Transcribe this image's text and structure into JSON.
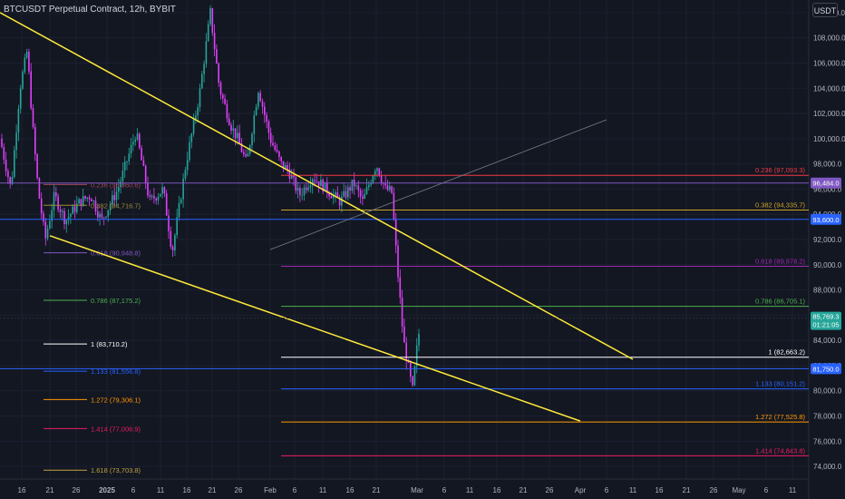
{
  "header": {
    "title": "BTCUSDT Perpetual Contract, 12h, BYBIT",
    "currency_button": "USDT"
  },
  "chart_data": {
    "type": "candlestick",
    "x_ticks": [
      "16",
      "21",
      "26",
      "2025",
      "6",
      "11",
      "16",
      "21",
      "26",
      "Feb",
      "6",
      "11",
      "16",
      "21",
      "Mar",
      "6",
      "11",
      "16",
      "21",
      "26",
      "Apr",
      "6",
      "11",
      "16",
      "21",
      "26",
      "May",
      "6",
      "11"
    ],
    "ylim": [
      73000,
      111000
    ],
    "y_ticks": [
      "74,000.0",
      "76,000.0",
      "78,000.0",
      "80,000.0",
      "82,000.0",
      "84,000.0",
      "86,000.0",
      "88,000.0",
      "90,000.0",
      "92,000.0",
      "94,000.0",
      "96,000.0",
      "98,000.0",
      "100,000.0",
      "102,000.0",
      "104,000.0",
      "106,000.0",
      "108,000.0",
      "110,000.0"
    ],
    "price_close": 85769.3,
    "price_labels": [
      {
        "text": "96,484.0",
        "value": 96484,
        "color": "#7e57c2"
      },
      {
        "text": "93,600.0",
        "value": 93600,
        "color": "#2962ff"
      },
      {
        "text": "81,750.0",
        "value": 81750,
        "color": "#2962ff"
      }
    ],
    "last_price": {
      "text": "85,769.3",
      "countdown": "01:21:05",
      "value": 85769.3,
      "color": "#26a69a"
    },
    "fib_left": [
      {
        "label": "0.236 (96,360.6)",
        "value": 96360.6,
        "color": "#a24a5a"
      },
      {
        "label": "0.382 (94,716.7)",
        "value": 94716.7,
        "color": "#a08a3a"
      },
      {
        "label": "0.618 (90,948.8)",
        "value": 90948.8,
        "color": "#7e57c2"
      },
      {
        "label": "0.786 (87,175.2)",
        "value": 87175.2,
        "color": "#4caf50"
      },
      {
        "label": "1 (83,710.2)",
        "value": 83710.2,
        "color": "#ffffff"
      },
      {
        "label": "1.133 (81,556.8)",
        "value": 81556.8,
        "color": "#2962ff"
      },
      {
        "label": "1.272 (79,306.1)",
        "value": 79306.1,
        "color": "#ff9800"
      },
      {
        "label": "1.414 (77,006.9)",
        "value": 77006.9,
        "color": "#e91e63"
      },
      {
        "label": "1.618 (73,703.8)",
        "value": 73703.8,
        "color": "#c0a040"
      }
    ],
    "fib_right": [
      {
        "label": "0.236 (97,093.3)",
        "value": 97093.3,
        "color": "#f23645"
      },
      {
        "label": "0.382 (94,335.7)",
        "value": 94335.7,
        "color": "#c9a227"
      },
      {
        "label": "0.618 (89,878.2)",
        "value": 89878.2,
        "color": "#9c27b0"
      },
      {
        "label": "0.786 (86,705.1)",
        "value": 86705.1,
        "color": "#4caf50"
      },
      {
        "label": "1 (82,663.2)",
        "value": 82663.2,
        "color": "#ffffff"
      },
      {
        "label": "1.133 (80,151.2)",
        "value": 80151.2,
        "color": "#2962ff"
      },
      {
        "label": "1.272 (77,525.8)",
        "value": 77525.8,
        "color": "#ff9800"
      },
      {
        "label": "1.414 (74,843.8)",
        "value": 74843.8,
        "color": "#e91e63"
      }
    ],
    "trendlines": [
      {
        "from": [
          "20",
          110000
        ],
        "to": [
          "Apr 11",
          82500
        ],
        "color": "#ffeb3b"
      },
      {
        "from": [
          "21",
          92300
        ],
        "to": [
          "Apr 18",
          77600
        ],
        "color": "#ffeb3b"
      },
      {
        "from": [
          "Feb 3",
          91200
        ],
        "to": [
          "Apr 6",
          101500
        ],
        "color": "#787b86"
      }
    ],
    "colors": {
      "up": "#26a69a",
      "down": "#e040fb",
      "background": "#131722"
    }
  }
}
